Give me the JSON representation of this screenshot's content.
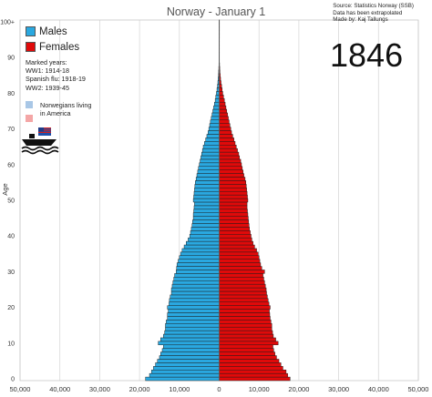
{
  "title": "Norway - January 1",
  "year_label": "1846",
  "source_lines": [
    "Source: Statistics Norway (SSB)",
    "Data has been extrapolated",
    "Made by: Kaj Tallungs"
  ],
  "legend": {
    "males": "Males",
    "females": "Females",
    "male_color": "#2aa8e0",
    "female_color": "#e00a0a"
  },
  "marked_years": {
    "heading": "Marked years:",
    "ww1": "WW1: 1914-18",
    "flu": "Spanish flu: 1918-19",
    "ww2": "WW2: 1939-45"
  },
  "emigration": {
    "line1": "Norwegians living",
    "line2": "in America",
    "swatch_male": "#a9c7e6",
    "swatch_female": "#f4a6a6"
  },
  "chart_data": {
    "type": "bar",
    "orientation": "horizontal-population-pyramid",
    "ylabel": "Age",
    "x_ticks": [
      "50,000",
      "40,000",
      "30,000",
      "20,000",
      "10,000",
      "0",
      "10,000",
      "20,000",
      "30,000",
      "40,000",
      "50,000"
    ],
    "y_ticks": [
      "0",
      "10",
      "20",
      "30",
      "40",
      "50",
      "60",
      "70",
      "80",
      "90",
      "100+"
    ],
    "xlim": [
      -50000,
      50000
    ],
    "ages": [
      0,
      1,
      2,
      3,
      4,
      5,
      6,
      7,
      8,
      9,
      10,
      11,
      12,
      13,
      14,
      15,
      16,
      17,
      18,
      19,
      20,
      21,
      22,
      23,
      24,
      25,
      26,
      27,
      28,
      29,
      30,
      31,
      32,
      33,
      34,
      35,
      36,
      37,
      38,
      39,
      40,
      41,
      42,
      43,
      44,
      45,
      46,
      47,
      48,
      49,
      50,
      51,
      52,
      53,
      54,
      55,
      56,
      57,
      58,
      59,
      60,
      61,
      62,
      63,
      64,
      65,
      66,
      67,
      68,
      69,
      70,
      71,
      72,
      73,
      74,
      75,
      76,
      77,
      78,
      79,
      80,
      81,
      82,
      83,
      84,
      85,
      86,
      87,
      88,
      89,
      90,
      91,
      92,
      93,
      94,
      95,
      96,
      97,
      98,
      99,
      100
    ],
    "series": [
      {
        "name": "Males",
        "values": [
          18500,
          17500,
          17000,
          16500,
          16000,
          15500,
          15000,
          14700,
          14300,
          14000,
          15300,
          14700,
          14000,
          13700,
          13500,
          13500,
          13300,
          13000,
          13000,
          12800,
          13000,
          12600,
          12500,
          12300,
          12000,
          12000,
          11800,
          11600,
          11400,
          11200,
          10800,
          10700,
          10600,
          10300,
          10000,
          9700,
          9300,
          8800,
          8300,
          7800,
          7400,
          7200,
          7000,
          6800,
          6700,
          6500,
          6500,
          6400,
          6300,
          6200,
          6500,
          6400,
          6300,
          6200,
          6100,
          6000,
          5800,
          5600,
          5400,
          5200,
          5000,
          4800,
          4600,
          4400,
          4200,
          4000,
          3700,
          3400,
          3100,
          2800,
          2600,
          2400,
          2200,
          2000,
          1800,
          1600,
          1400,
          1200,
          1000,
          850,
          700,
          560,
          440,
          340,
          260,
          190,
          140,
          100,
          70,
          50,
          35,
          25,
          16,
          10,
          7,
          5,
          3,
          2,
          1,
          1,
          1
        ]
      },
      {
        "name": "Females",
        "values": [
          17800,
          17200,
          16800,
          16000,
          15500,
          15000,
          14400,
          14000,
          13700,
          13500,
          14800,
          14200,
          13600,
          13400,
          13200,
          13200,
          13000,
          12800,
          12700,
          12600,
          12800,
          12500,
          12300,
          12100,
          11900,
          11800,
          11600,
          11400,
          11200,
          11000,
          11400,
          10700,
          10400,
          10200,
          10000,
          9800,
          9400,
          8900,
          8500,
          8200,
          8000,
          7800,
          7600,
          7500,
          7400,
          7300,
          7200,
          7100,
          7000,
          7000,
          7200,
          7100,
          7000,
          6900,
          6800,
          6700,
          6500,
          6200,
          6000,
          5800,
          5600,
          5400,
          5100,
          4900,
          4600,
          4300,
          4000,
          3700,
          3400,
          3100,
          2900,
          2700,
          2500,
          2300,
          2100,
          1900,
          1700,
          1500,
          1300,
          1100,
          900,
          750,
          600,
          460,
          350,
          260,
          190,
          140,
          100,
          70,
          50,
          35,
          24,
          16,
          10,
          6,
          4,
          3,
          2,
          1,
          1
        ]
      }
    ]
  }
}
